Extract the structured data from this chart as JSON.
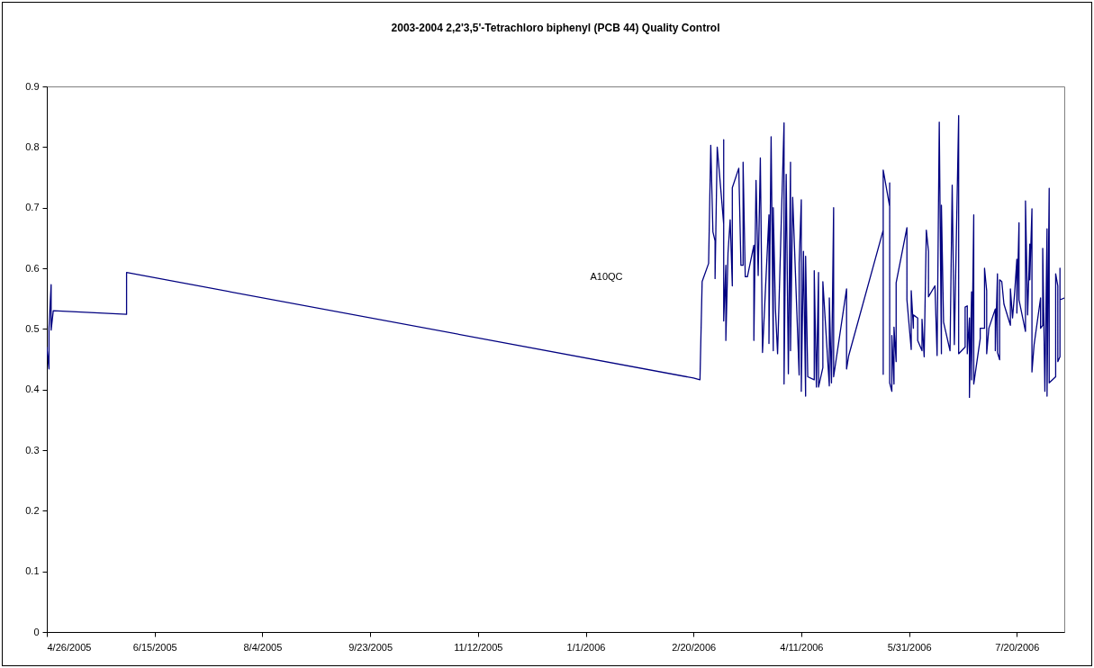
{
  "chart_data": {
    "type": "line",
    "title": "2003-2004 2,2'3,5'-Tetrachloro biphenyl (PCB 44) Quality Control",
    "annotations": [
      "A10QC"
    ],
    "xlim": [
      "2005-04-26",
      "2006-08-11"
    ],
    "xticks": [
      {
        "value": "2005-04-26",
        "label": "4/26/2005"
      },
      {
        "value": "2005-06-15",
        "label": "6/15/2005"
      },
      {
        "value": "2005-08-04",
        "label": "8/4/2005"
      },
      {
        "value": "2005-09-23",
        "label": "9/23/2005"
      },
      {
        "value": "2005-11-12",
        "label": "11/12/2005"
      },
      {
        "value": "2006-01-01",
        "label": "1/1/2006"
      },
      {
        "value": "2006-02-20",
        "label": "2/20/2006"
      },
      {
        "value": "2006-04-11",
        "label": "4/11/2006"
      },
      {
        "value": "2006-05-31",
        "label": "5/31/2006"
      },
      {
        "value": "2006-07-20",
        "label": "7/20/2006"
      }
    ],
    "ylim": [
      0,
      0.9
    ],
    "yticks": [
      0,
      0.1,
      0.2,
      0.3,
      0.4,
      0.5,
      0.6,
      0.7,
      0.8,
      0.9
    ],
    "grid": false,
    "marker": "none",
    "line_style": "solid",
    "series": [
      {
        "color": "#000080",
        "x": [
          "2005-04-26",
          "2005-04-27",
          "2005-04-27",
          "2005-04-28",
          "2005-04-28",
          "2005-04-29",
          "2005-06-02",
          "2005-06-02",
          "2006-02-20",
          "2006-02-23",
          "2006-02-24",
          "2006-02-27",
          "2006-02-28",
          "2006-03-01",
          "2006-03-02",
          "2006-03-02",
          "2006-03-03",
          "2006-03-06",
          "2006-03-06",
          "2006-03-06",
          "2006-03-07",
          "2006-03-07",
          "2006-03-08",
          "2006-03-09",
          "2006-03-10",
          "2006-03-10",
          "2006-03-13",
          "2006-03-14",
          "2006-03-15",
          "2006-03-15",
          "2006-03-16",
          "2006-03-17",
          "2006-03-20",
          "2006-03-20",
          "2006-03-21",
          "2006-03-22",
          "2006-03-23",
          "2006-03-24",
          "2006-03-27",
          "2006-03-27",
          "2006-03-28",
          "2006-03-29",
          "2006-03-29",
          "2006-03-30",
          "2006-03-31",
          "2006-04-03",
          "2006-04-03",
          "2006-04-04",
          "2006-04-05",
          "2006-04-06",
          "2006-04-06",
          "2006-04-07",
          "2006-04-10",
          "2006-04-10",
          "2006-04-11",
          "2006-04-11",
          "2006-04-12",
          "2006-04-13",
          "2006-04-13",
          "2006-04-14",
          "2006-04-17",
          "2006-04-17",
          "2006-04-18",
          "2006-04-19",
          "2006-04-19",
          "2006-04-21",
          "2006-04-21",
          "2006-04-24",
          "2006-04-24",
          "2006-04-25",
          "2006-04-26",
          "2006-04-26",
          "2006-05-02",
          "2006-05-02",
          "2006-05-03",
          "2006-05-19",
          "2006-05-19",
          "2006-05-19",
          "2006-05-22",
          "2006-05-22",
          "2006-05-22",
          "2006-05-23",
          "2006-05-23",
          "2006-05-24",
          "2006-05-24",
          "2006-05-25",
          "2006-05-25",
          "2006-05-30",
          "2006-05-30",
          "2006-06-01",
          "2006-06-01",
          "2006-06-02",
          "2006-06-02",
          "2006-06-04",
          "2006-06-04",
          "2006-06-06",
          "2006-06-06",
          "2006-06-07",
          "2006-06-08",
          "2006-06-09",
          "2006-06-09",
          "2006-06-12",
          "2006-06-13",
          "2006-06-14",
          "2006-06-15",
          "2006-06-15",
          "2006-06-16",
          "2006-06-19",
          "2006-06-20",
          "2006-06-21",
          "2006-06-23",
          "2006-06-23",
          "2006-06-26",
          "2006-06-26",
          "2006-06-27",
          "2006-06-27",
          "2006-06-28",
          "2006-06-28",
          "2006-06-29",
          "2006-06-29",
          "2006-06-30",
          "2006-06-30",
          "2006-07-03",
          "2006-07-03",
          "2006-07-05",
          "2006-07-05",
          "2006-07-06",
          "2006-07-06",
          "2006-07-07",
          "2006-07-10",
          "2006-07-10",
          "2006-07-11",
          "2006-07-11",
          "2006-07-12",
          "2006-07-12",
          "2006-07-13",
          "2006-07-14",
          "2006-07-17",
          "2006-07-17",
          "2006-07-18",
          "2006-07-19",
          "2006-07-20",
          "2006-07-20",
          "2006-07-21",
          "2006-07-21",
          "2006-07-24",
          "2006-07-24",
          "2006-07-25",
          "2006-07-26",
          "2006-07-26",
          "2006-07-27",
          "2006-07-27",
          "2006-07-28",
          "2006-07-31",
          "2006-07-31",
          "2006-08-01",
          "2006-08-01",
          "2006-08-02",
          "2006-08-03",
          "2006-08-03",
          "2006-08-04",
          "2006-08-04",
          "2006-08-07",
          "2006-08-07",
          "2006-08-08",
          "2006-08-08",
          "2006-08-09",
          "2006-08-09",
          "2006-08-09",
          "2006-08-11"
        ],
        "values": [
          0.47,
          0.434,
          0.501,
          0.573,
          0.498,
          0.53,
          0.524,
          0.593,
          0.419,
          0.416,
          0.578,
          0.608,
          0.803,
          0.66,
          0.645,
          0.583,
          0.8,
          0.673,
          0.812,
          0.513,
          0.605,
          0.481,
          0.625,
          0.68,
          0.571,
          0.733,
          0.765,
          0.605,
          0.605,
          0.775,
          0.586,
          0.586,
          0.638,
          0.481,
          0.745,
          0.588,
          0.782,
          0.461,
          0.688,
          0.476,
          0.817,
          0.464,
          0.7,
          0.533,
          0.459,
          0.84,
          0.409,
          0.755,
          0.426,
          0.775,
          0.464,
          0.717,
          0.424,
          0.608,
          0.713,
          0.397,
          0.628,
          0.389,
          0.62,
          0.421,
          0.416,
          0.596,
          0.404,
          0.593,
          0.404,
          0.436,
          0.578,
          0.406,
          0.551,
          0.411,
          0.7,
          0.421,
          0.566,
          0.434,
          0.456,
          0.663,
          0.425,
          0.762,
          0.702,
          0.741,
          0.411,
          0.397,
          0.489,
          0.409,
          0.503,
          0.446,
          0.576,
          0.667,
          0.548,
          0.466,
          0.563,
          0.501,
          0.523,
          0.518,
          0.481,
          0.464,
          0.516,
          0.454,
          0.663,
          0.628,
          0.553,
          0.571,
          0.456,
          0.841,
          0.459,
          0.704,
          0.511,
          0.464,
          0.737,
          0.474,
          0.852,
          0.459,
          0.47,
          0.536,
          0.538,
          0.459,
          0.518,
          0.387,
          0.561,
          0.416,
          0.688,
          0.409,
          0.484,
          0.501,
          0.501,
          0.6,
          0.563,
          0.459,
          0.501,
          0.533,
          0.464,
          0.591,
          0.461,
          0.449,
          0.581,
          0.578,
          0.541,
          0.506,
          0.566,
          0.518,
          0.561,
          0.615,
          0.526,
          0.675,
          0.548,
          0.496,
          0.711,
          0.523,
          0.64,
          0.581,
          0.698,
          0.429,
          0.474,
          0.551,
          0.501,
          0.506,
          0.633,
          0.397,
          0.665,
          0.389,
          0.732,
          0.411,
          0.421,
          0.591,
          0.571,
          0.446,
          0.454,
          0.6,
          0.548,
          0.551
        ]
      }
    ]
  }
}
